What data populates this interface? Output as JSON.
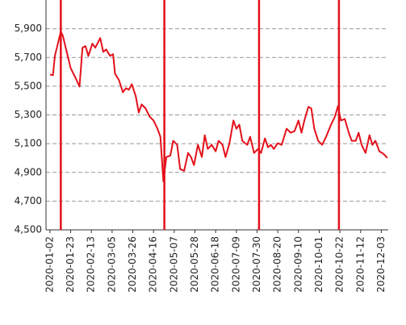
{
  "chart_data": {
    "type": "line",
    "x": [
      "2020-01-02",
      "2020-01-05",
      "2020-01-07",
      "2020-01-10",
      "2020-01-13",
      "2020-01-15",
      "2020-01-18",
      "2020-01-23",
      "2020-01-29",
      "2020-02-01",
      "2020-02-04",
      "2020-02-07",
      "2020-02-10",
      "2020-02-14",
      "2020-02-17",
      "2020-02-22",
      "2020-02-25",
      "2020-02-28",
      "2020-03-03",
      "2020-03-06",
      "2020-03-08",
      "2020-03-12",
      "2020-03-16",
      "2020-03-19",
      "2020-03-22",
      "2020-03-25",
      "2020-03-29",
      "2020-04-01",
      "2020-04-04",
      "2020-04-08",
      "2020-04-12",
      "2020-04-16",
      "2020-04-20",
      "2020-04-23",
      "2020-04-26",
      "2020-04-29",
      "2020-05-03",
      "2020-05-06",
      "2020-05-10",
      "2020-05-13",
      "2020-05-17",
      "2020-05-21",
      "2020-05-24",
      "2020-05-27",
      "2020-05-31",
      "2020-06-04",
      "2020-06-07",
      "2020-06-10",
      "2020-06-14",
      "2020-06-18",
      "2020-06-21",
      "2020-06-25",
      "2020-06-28",
      "2020-07-02",
      "2020-07-06",
      "2020-07-09",
      "2020-07-12",
      "2020-07-15",
      "2020-07-20",
      "2020-07-23",
      "2020-07-27",
      "2020-07-31",
      "2020-08-03",
      "2020-08-07",
      "2020-08-10",
      "2020-08-13",
      "2020-08-16",
      "2020-08-20",
      "2020-08-24",
      "2020-08-29",
      "2020-09-02",
      "2020-09-06",
      "2020-09-10",
      "2020-09-13",
      "2020-09-16",
      "2020-09-20",
      "2020-09-23",
      "2020-09-26",
      "2020-09-30",
      "2020-10-04",
      "2020-10-08",
      "2020-10-13",
      "2020-10-17",
      "2020-10-20",
      "2020-10-23",
      "2020-10-27",
      "2020-10-31",
      "2020-11-03",
      "2020-11-07",
      "2020-11-10",
      "2020-11-13",
      "2020-11-17",
      "2020-11-21",
      "2020-11-24",
      "2020-11-27",
      "2020-12-01",
      "2020-12-04",
      "2020-12-07",
      "2020-12-09"
    ],
    "values": [
      5582,
      5576,
      5711,
      5796,
      5880,
      5852,
      5768,
      5627,
      5542,
      5497,
      5768,
      5779,
      5711,
      5796,
      5768,
      5835,
      5739,
      5756,
      5711,
      5723,
      5587,
      5542,
      5458,
      5486,
      5475,
      5514,
      5430,
      5317,
      5373,
      5345,
      5289,
      5261,
      5204,
      5148,
      4838,
      5007,
      5017,
      5120,
      5092,
      4923,
      4911,
      5035,
      5007,
      4951,
      5092,
      5007,
      5159,
      5063,
      5092,
      5046,
      5120,
      5092,
      5007,
      5103,
      5261,
      5204,
      5232,
      5120,
      5092,
      5148,
      5035,
      5063,
      5035,
      5137,
      5075,
      5092,
      5063,
      5103,
      5092,
      5204,
      5176,
      5187,
      5261,
      5176,
      5261,
      5356,
      5345,
      5204,
      5120,
      5092,
      5148,
      5232,
      5289,
      5362,
      5261,
      5272,
      5176,
      5120,
      5120,
      5176,
      5092,
      5035,
      5159,
      5092,
      5120,
      5046,
      5035,
      5017,
      5001
    ],
    "color": "#e3111b",
    "vlines": [
      "2020-01-13",
      "2020-04-27",
      "2020-08-01",
      "2020-10-21"
    ],
    "xlim": [
      "2019-12-29",
      "2020-12-10"
    ],
    "xticks": [
      "2020-01-02",
      "2020-01-23",
      "2020-02-13",
      "2020-03-05",
      "2020-03-26",
      "2020-04-16",
      "2020-05-07",
      "2020-05-28",
      "2020-06-18",
      "2020-07-09",
      "2020-07-30",
      "2020-08-20",
      "2020-09-10",
      "2020-10-01",
      "2020-10-22",
      "2020-11-12",
      "2020-12-03"
    ],
    "ylim": [
      4500,
      6100
    ],
    "yticks": [
      {
        "value": 4500,
        "label": "4,500"
      },
      {
        "value": 4700,
        "label": "4,700"
      },
      {
        "value": 4900,
        "label": "4,900"
      },
      {
        "value": 5100,
        "label": "5,100"
      },
      {
        "value": 5300,
        "label": "5,300"
      },
      {
        "value": 5500,
        "label": "5,500"
      },
      {
        "value": 5700,
        "label": "5,700"
      },
      {
        "value": 5900,
        "label": "5,900"
      }
    ],
    "grid": true
  }
}
